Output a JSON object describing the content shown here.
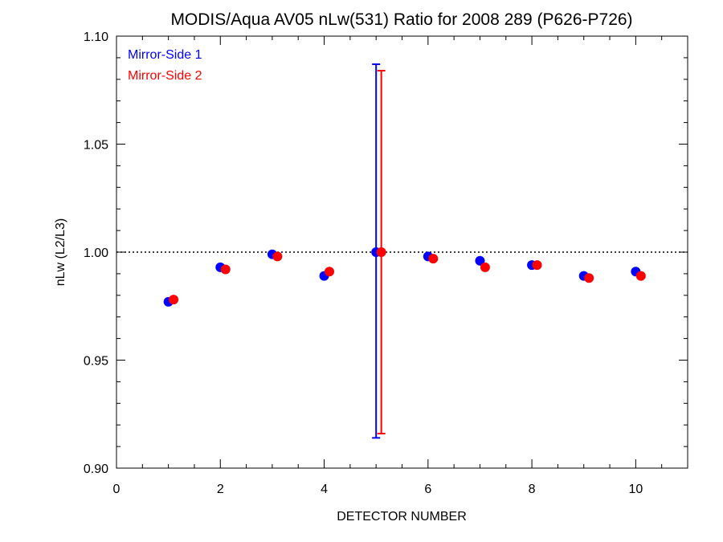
{
  "chart_data": {
    "type": "scatter",
    "title": "MODIS/Aqua AV05 nLw(531) Ratio for 2008 289 (P626-P726)",
    "xlabel": "DETECTOR NUMBER",
    "ylabel": "nLw (L2/L3)",
    "xlim": [
      0,
      11
    ],
    "ylim": [
      0.9,
      1.1
    ],
    "x_ticks": [
      "0",
      "2",
      "4",
      "6",
      "8",
      "10"
    ],
    "y_ticks": [
      "0.90",
      "0.95",
      "1.00",
      "1.05",
      "1.10"
    ],
    "reference_line": 1.0,
    "grid": false,
    "legend_position": "top-left",
    "series": [
      {
        "name": "Mirror-Side 1",
        "color": "#0000ff",
        "x": [
          1,
          2,
          3,
          4,
          5,
          6,
          7,
          8,
          9,
          10
        ],
        "values": [
          0.977,
          0.993,
          0.999,
          0.989,
          1.0,
          0.998,
          0.996,
          0.994,
          0.989,
          0.991
        ],
        "error_bar": {
          "x": 5,
          "low": 0.914,
          "high": 1.087
        }
      },
      {
        "name": "Mirror-Side 2",
        "color": "#ff0000",
        "x": [
          1.1,
          2.1,
          3.1,
          4.1,
          5.1,
          6.1,
          7.1,
          8.1,
          9.1,
          10.1
        ],
        "values": [
          0.978,
          0.992,
          0.998,
          0.991,
          1.0,
          0.997,
          0.993,
          0.994,
          0.988,
          0.989
        ],
        "error_bar": {
          "x": 5.1,
          "low": 0.916,
          "high": 1.084
        }
      }
    ]
  }
}
